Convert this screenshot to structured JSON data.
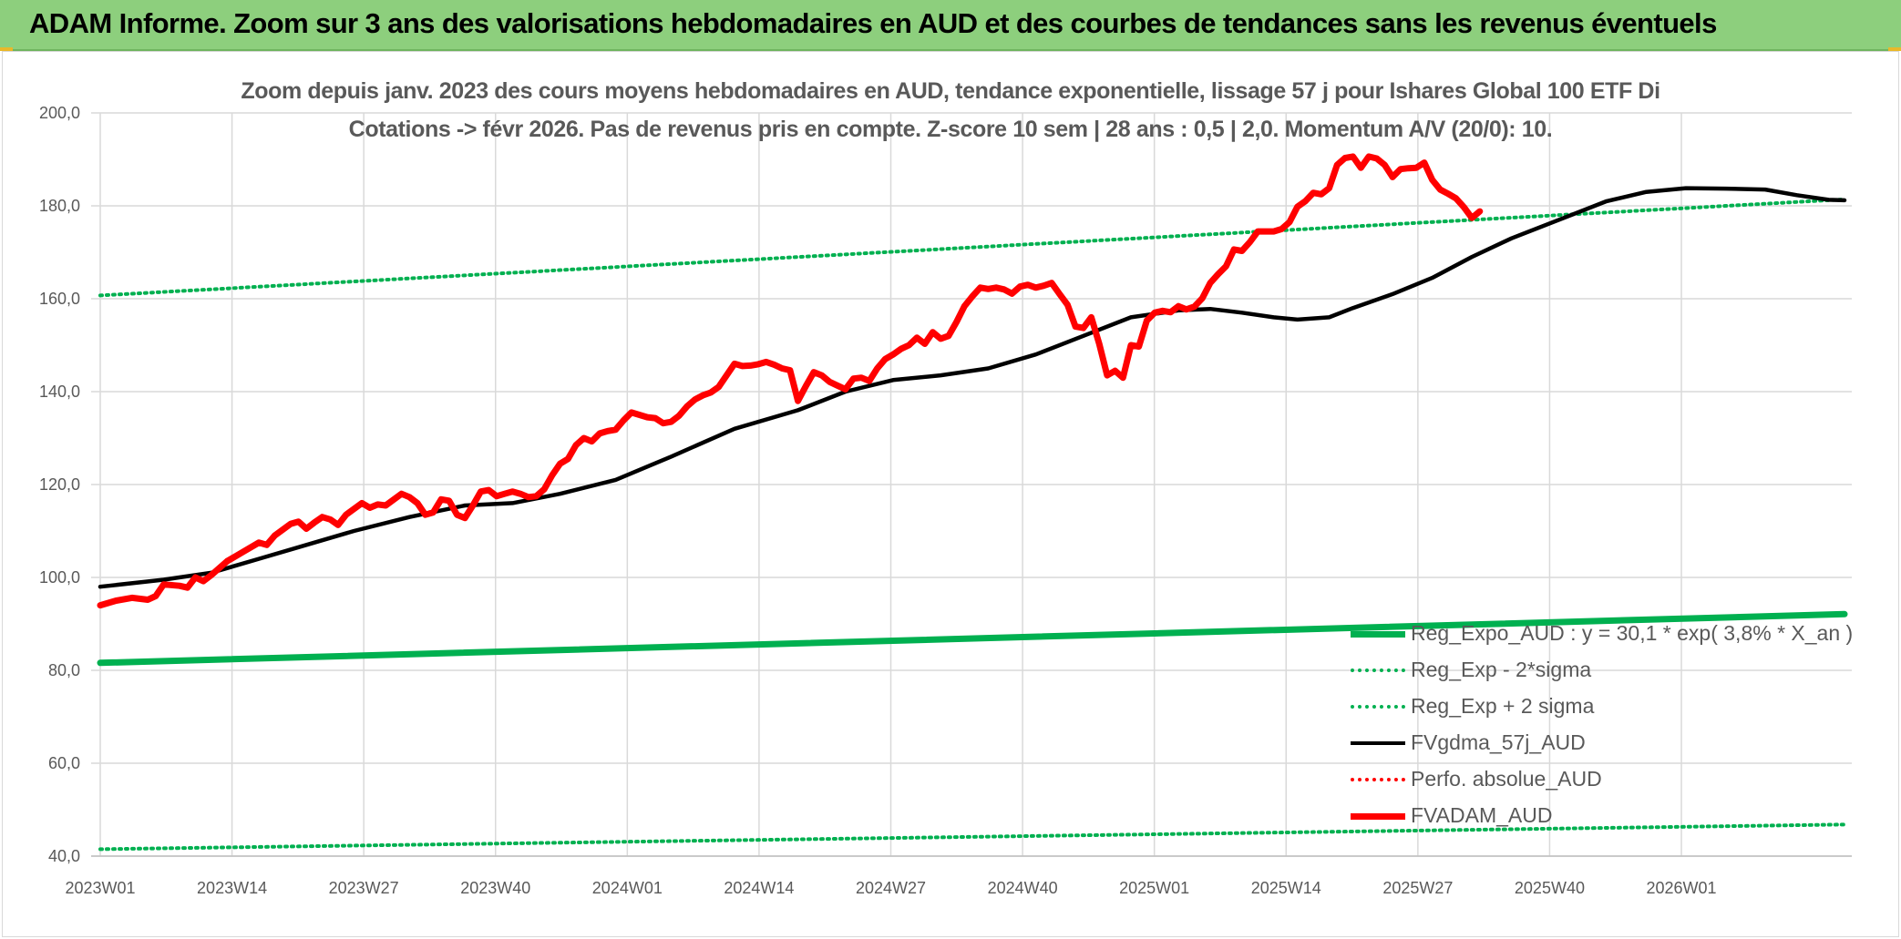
{
  "banner": {
    "title": "ADAM Informe. Zoom sur 3 ans des valorisations hebdomadaires en AUD et des courbes de tendances sans les revenus éventuels",
    "background": "#8dcf7d"
  },
  "chart_data": {
    "type": "line",
    "title_line1": "Zoom depuis janv. 2023 des cours moyens hebdomadaires en AUD, tendance exponentielle, lissage 57 j pour Ishares Global 100 ETF Di",
    "title_line2": "Cotations -> févr 2026. Pas de revenus pris en compte. Z-score 10 sem | 28 ans : 0,5 | 2,0. Momentum A/V (20/0): 10.",
    "xlabel": "",
    "ylabel": "",
    "ylim": [
      40,
      200
    ],
    "yticks": [
      "40,0",
      "60,0",
      "80,0",
      "100,0",
      "120,0",
      "140,0",
      "160,0",
      "180,0",
      "200,0"
    ],
    "categories_shown": [
      "2023W01",
      "2023W14",
      "2023W27",
      "2023W40",
      "2024W01",
      "2024W14",
      "2024W27",
      "2024W40",
      "2025W01",
      "2025W14",
      "2025W27",
      "2025W40",
      "2026W01"
    ],
    "week_count": 165,
    "grid": true,
    "legend_position": "bottom-right",
    "series": [
      {
        "name": "Reg_Expo_AUD : y = 30,1 * exp( 3,8% *  X_an )",
        "style": "solid-thick",
        "color": "#00b050",
        "values": [
          81.6,
          92.1
        ]
      },
      {
        "name": "Reg_Exp - 2*sigma",
        "style": "dotted",
        "color": "#00b050",
        "values": [
          41.5,
          46.8
        ]
      },
      {
        "name": "Reg_Exp + 2 sigma",
        "style": "dotted",
        "color": "#00b050",
        "values": [
          160.7,
          181.4
        ]
      },
      {
        "name": "FVgdma_57j_AUD",
        "style": "solid",
        "color": "#000000",
        "points": [
          [
            0,
            98
          ],
          [
            8,
            99.5
          ],
          [
            14,
            101
          ],
          [
            20,
            104
          ],
          [
            26,
            107
          ],
          [
            32,
            110
          ],
          [
            39,
            113
          ],
          [
            46,
            115.5
          ],
          [
            52,
            116
          ],
          [
            58,
            118
          ],
          [
            65,
            121
          ],
          [
            72,
            126
          ],
          [
            80,
            132
          ],
          [
            88,
            136
          ],
          [
            94,
            140
          ],
          [
            100,
            142.5
          ],
          [
            106,
            143.5
          ],
          [
            112,
            145
          ],
          [
            118,
            148
          ],
          [
            124,
            152
          ],
          [
            130,
            156
          ],
          [
            136,
            157.5
          ],
          [
            140,
            157.8
          ],
          [
            144,
            157
          ],
          [
            148,
            156
          ],
          [
            151,
            155.5
          ],
          [
            155,
            156
          ],
          [
            158,
            158
          ],
          [
            163,
            161
          ],
          [
            168,
            164.5
          ],
          [
            173,
            169
          ],
          [
            178,
            173
          ],
          [
            184,
            177
          ],
          [
            190,
            181
          ],
          [
            195,
            183
          ],
          [
            200,
            183.8
          ],
          [
            205,
            183.7
          ],
          [
            210,
            183.5
          ],
          [
            214,
            182.3
          ],
          [
            218,
            181.3
          ],
          [
            220,
            181.2
          ]
        ]
      },
      {
        "name": "Perfo. absolue_AUD",
        "style": "dotted",
        "color": "#ff0000",
        "values": []
      },
      {
        "name": "FVADAM_AUD",
        "style": "solid-thick",
        "color": "#ff0000",
        "points": [
          [
            0,
            94
          ],
          [
            2,
            95
          ],
          [
            4,
            95.6
          ],
          [
            6,
            95.2
          ],
          [
            7,
            96
          ],
          [
            8,
            98.5
          ],
          [
            10,
            98.2
          ],
          [
            11,
            97.8
          ],
          [
            12,
            100
          ],
          [
            13,
            99.2
          ],
          [
            14,
            100.5
          ],
          [
            16,
            103.5
          ],
          [
            18,
            105.5
          ],
          [
            20,
            107.5
          ],
          [
            21,
            107
          ],
          [
            22,
            109
          ],
          [
            24,
            111.5
          ],
          [
            25,
            112
          ],
          [
            26,
            110.5
          ],
          [
            27,
            111.8
          ],
          [
            28,
            113
          ],
          [
            29,
            112.5
          ],
          [
            30,
            111.3
          ],
          [
            31,
            113.5
          ],
          [
            33,
            116
          ],
          [
            34,
            115
          ],
          [
            35,
            115.7
          ],
          [
            36,
            115.5
          ],
          [
            38,
            118
          ],
          [
            39,
            117.3
          ],
          [
            40,
            116
          ],
          [
            41,
            113.5
          ],
          [
            42,
            114
          ],
          [
            43,
            116.8
          ],
          [
            44,
            116.5
          ],
          [
            45,
            113.5
          ],
          [
            46,
            112.8
          ],
          [
            47,
            115.5
          ],
          [
            48,
            118.5
          ],
          [
            49,
            118.8
          ],
          [
            50,
            117.5
          ],
          [
            51,
            118
          ],
          [
            52,
            118.5
          ],
          [
            53,
            118
          ],
          [
            54,
            117.3
          ],
          [
            55,
            117.5
          ],
          [
            56,
            119
          ],
          [
            57,
            122
          ],
          [
            58,
            124.5
          ],
          [
            59,
            125.5
          ],
          [
            60,
            128.5
          ],
          [
            61,
            130
          ],
          [
            62,
            129.3
          ],
          [
            63,
            131
          ],
          [
            64,
            131.5
          ],
          [
            65,
            131.8
          ],
          [
            66,
            133.8
          ],
          [
            67,
            135.5
          ],
          [
            68,
            135
          ],
          [
            69,
            134.5
          ],
          [
            70,
            134.3
          ],
          [
            71,
            133.2
          ],
          [
            72,
            133.5
          ],
          [
            73,
            134.8
          ],
          [
            74,
            136.8
          ],
          [
            75,
            138.3
          ],
          [
            76,
            139.2
          ],
          [
            77,
            139.8
          ],
          [
            78,
            141
          ],
          [
            79,
            143.5
          ],
          [
            80,
            146
          ],
          [
            81,
            145.5
          ],
          [
            82,
            145.6
          ],
          [
            83,
            145.9
          ],
          [
            84,
            146.4
          ],
          [
            85,
            145.8
          ],
          [
            86,
            145
          ],
          [
            87,
            144.6
          ],
          [
            88,
            138
          ],
          [
            89,
            141.2
          ],
          [
            90,
            144.2
          ],
          [
            91,
            143.5
          ],
          [
            92,
            142.1
          ],
          [
            93,
            141.3
          ],
          [
            94,
            140.5
          ],
          [
            95,
            142.8
          ],
          [
            96,
            143
          ],
          [
            97,
            142.3
          ],
          [
            98,
            145
          ],
          [
            99,
            147
          ],
          [
            100,
            148
          ],
          [
            101,
            149.2
          ],
          [
            102,
            150
          ],
          [
            103,
            151.6
          ],
          [
            104,
            150.3
          ],
          [
            105,
            152.8
          ],
          [
            106,
            151.4
          ],
          [
            107,
            152
          ],
          [
            108,
            155
          ],
          [
            109,
            158.4
          ],
          [
            110,
            160.5
          ],
          [
            111,
            162.4
          ],
          [
            112,
            162.1
          ],
          [
            113,
            162.4
          ],
          [
            114,
            162
          ],
          [
            115,
            161.1
          ],
          [
            116,
            162.6
          ],
          [
            117,
            163
          ],
          [
            118,
            162.4
          ],
          [
            119,
            162.8
          ],
          [
            120,
            163.4
          ],
          [
            121,
            161
          ],
          [
            122,
            158.7
          ],
          [
            123,
            154
          ],
          [
            124,
            153.7
          ],
          [
            125,
            156
          ],
          [
            126,
            150.3
          ],
          [
            127,
            143.5
          ],
          [
            128,
            144.5
          ],
          [
            129,
            143
          ],
          [
            130,
            150
          ],
          [
            131,
            149.7
          ],
          [
            132,
            155.3
          ],
          [
            133,
            157
          ],
          [
            134,
            157.4
          ],
          [
            135,
            157.1
          ],
          [
            136,
            158.4
          ],
          [
            137,
            157.7
          ],
          [
            138,
            158.3
          ],
          [
            139,
            160.1
          ],
          [
            140,
            163.4
          ],
          [
            141,
            165.3
          ],
          [
            142,
            167
          ],
          [
            143,
            170.6
          ],
          [
            144,
            170.3
          ],
          [
            145,
            172.2
          ],
          [
            146,
            174.5
          ],
          [
            147,
            174.5
          ],
          [
            148,
            174.5
          ],
          [
            149,
            175
          ],
          [
            150,
            176.5
          ],
          [
            151,
            179.8
          ],
          [
            152,
            181
          ],
          [
            153,
            182.8
          ],
          [
            154,
            182.5
          ],
          [
            155,
            183.8
          ],
          [
            156,
            188.8
          ],
          [
            157,
            190.3
          ],
          [
            158,
            190.6
          ],
          [
            159,
            188.2
          ],
          [
            160,
            190.6
          ],
          [
            161,
            190.2
          ],
          [
            162,
            188.8
          ],
          [
            163,
            186.2
          ],
          [
            164,
            187.9
          ],
          [
            165,
            188.1
          ],
          [
            166,
            188.2
          ],
          [
            167,
            189.3
          ],
          [
            168,
            185.6
          ],
          [
            169,
            183.5
          ],
          [
            170,
            182.6
          ],
          [
            171,
            181.6
          ],
          [
            172,
            179.7
          ],
          [
            173,
            177.4
          ],
          [
            174,
            178.8
          ]
        ]
      }
    ]
  }
}
